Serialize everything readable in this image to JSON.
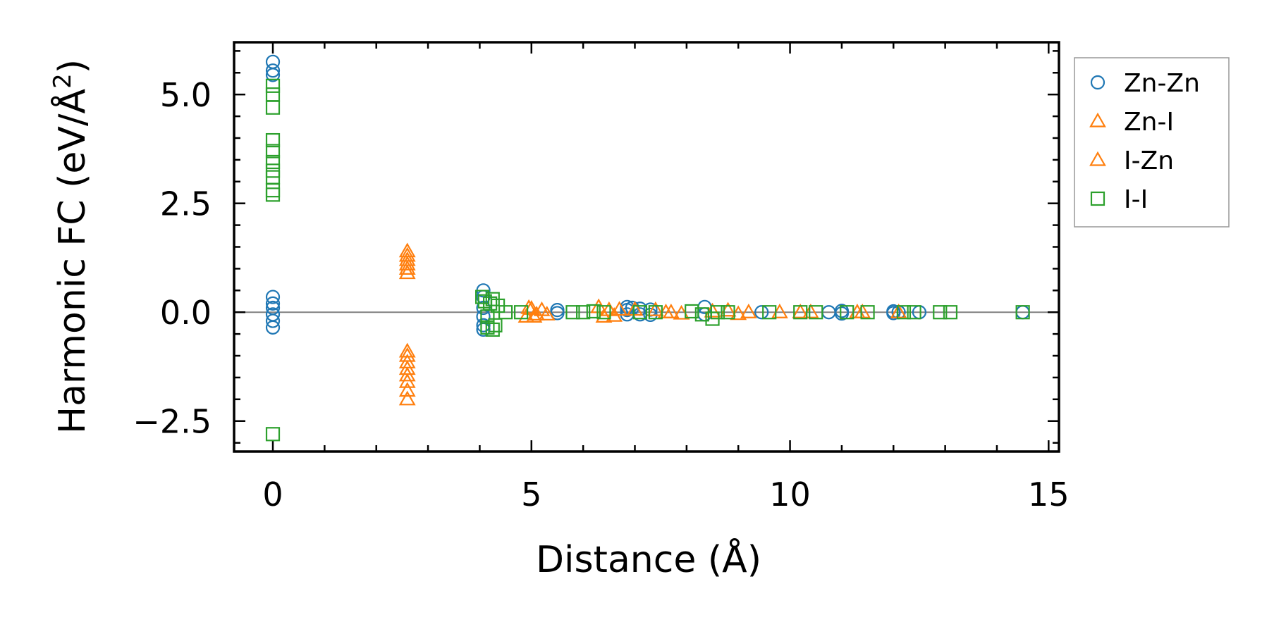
{
  "chart_data": {
    "type": "scatter",
    "xlabel": "Distance (Å)",
    "ylabel_main": "Harmonic FC (eV/Å",
    "ylabel_sup": "2",
    "ylabel_close": ")",
    "xlim": [
      -0.75,
      15.2
    ],
    "ylim": [
      -3.2,
      6.2
    ],
    "xticks": [
      0,
      5,
      10,
      15
    ],
    "xtick_labels": [
      "0",
      "5",
      "10",
      "15"
    ],
    "yticks": [
      -2.5,
      0.0,
      2.5,
      5.0
    ],
    "ytick_labels": [
      "−2.5",
      "0.0",
      "2.5",
      "5.0"
    ],
    "x_minor_step": 1,
    "y_minor_step": 0.5,
    "zero_line": 0,
    "legend_position": "outside-right-top",
    "series": [
      {
        "name": "Zn-Zn",
        "marker": "circle",
        "color": "#1f77b4",
        "x": [
          0,
          0,
          0,
          0,
          0,
          0,
          0,
          0,
          0,
          4.07,
          4.07,
          4.07,
          4.07,
          4.07,
          4.07,
          5.5,
          5.5,
          6.85,
          6.85,
          6.85,
          6.95,
          7.1,
          7.1,
          7.3,
          7.3,
          8.35,
          8.35,
          9.45,
          10.75,
          11.0,
          11.0,
          12.0,
          12.0,
          12.1,
          12.5,
          14.5
        ],
        "y": [
          5.75,
          5.55,
          5.45,
          0.35,
          0.2,
          0.1,
          -0.05,
          -0.2,
          -0.35,
          0.5,
          0.35,
          0.1,
          -0.1,
          -0.3,
          -0.4,
          0.05,
          -0.02,
          0.12,
          0.05,
          -0.05,
          0.1,
          0.08,
          -0.05,
          0.06,
          -0.06,
          0.12,
          -0.05,
          0.0,
          0.0,
          0.03,
          -0.03,
          0.02,
          -0.02,
          0.0,
          0.0,
          0.0
        ]
      },
      {
        "name": "Zn-I",
        "marker": "triangle",
        "color": "#ff7f0e",
        "x": [
          2.6,
          2.6,
          2.6,
          2.6,
          2.6,
          2.6,
          2.6,
          2.6,
          2.6,
          2.6,
          2.6,
          2.6,
          2.6,
          2.6,
          4.95,
          5.05,
          5.2,
          5.3,
          6.3,
          6.4,
          6.5,
          7.0,
          7.4,
          7.6,
          7.9,
          8.8,
          9.0,
          9.8,
          10.4,
          11.4,
          12.1
        ],
        "y": [
          1.4,
          1.3,
          1.2,
          1.1,
          1.0,
          0.9,
          -0.9,
          -1.0,
          -1.15,
          -1.3,
          -1.45,
          -1.6,
          -1.8,
          -2.0,
          0.1,
          -0.1,
          0.05,
          -0.05,
          0.12,
          -0.1,
          0.05,
          0.06,
          0.05,
          0.0,
          -0.03,
          0.04,
          -0.04,
          0.0,
          0.0,
          0.0,
          0.0
        ]
      },
      {
        "name": "I-Zn",
        "marker": "triangle",
        "color": "#ff7f0e",
        "x": [
          4.9,
          5.0,
          5.1,
          6.6,
          6.7,
          7.7,
          8.5,
          9.2,
          10.2,
          11.3
        ],
        "y": [
          -0.1,
          0.08,
          -0.05,
          -0.08,
          0.06,
          0.0,
          0.02,
          0.0,
          0.0,
          0.0
        ]
      },
      {
        "name": "I-I",
        "marker": "square",
        "color": "#2ca02c",
        "x": [
          0,
          0,
          0,
          0,
          0,
          0,
          0,
          0,
          0,
          0,
          0,
          4.05,
          4.1,
          4.15,
          4.2,
          4.25,
          4.3,
          4.35,
          4.15,
          4.25,
          4.5,
          4.8,
          5.8,
          6.0,
          6.2,
          6.4,
          7.1,
          7.4,
          8.1,
          8.3,
          8.5,
          8.6,
          8.8,
          9.6,
          10.2,
          10.5,
          11.1,
          11.5,
          12.2,
          12.4,
          12.9,
          13.1,
          14.5
        ],
        "y": [
          5.2,
          5.0,
          4.7,
          3.95,
          3.7,
          3.45,
          3.25,
          3.1,
          2.8,
          2.7,
          -2.8,
          0.35,
          0.25,
          -0.1,
          0.2,
          0.3,
          -0.3,
          0.15,
          -0.35,
          -0.4,
          0.0,
          0.0,
          0.0,
          0.0,
          0.02,
          0.0,
          0.0,
          0.0,
          0.02,
          -0.05,
          -0.15,
          0.0,
          0.0,
          0.0,
          0.0,
          0.0,
          0.0,
          0.0,
          0.0,
          0.0,
          0.0,
          0.0,
          0.0
        ]
      }
    ]
  }
}
